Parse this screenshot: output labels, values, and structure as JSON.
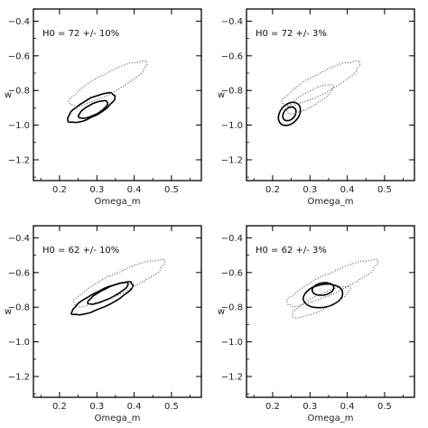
{
  "chart_data": [
    {
      "type": "contour",
      "label": "H0 = 72 +/- 10%",
      "xlabel": "Omega_m",
      "ylabel": "w",
      "xlim": [
        0.13,
        0.58
      ],
      "ylim": [
        -1.32,
        -0.33
      ],
      "xticks": [
        0.2,
        0.3,
        0.4,
        0.5
      ],
      "yticks": [
        -1.2,
        -1.0,
        -0.8,
        -0.6,
        -0.4
      ],
      "contours": [
        {
          "style": "solid",
          "center": [
            0.285,
            -0.9
          ],
          "semi_major": 0.2,
          "semi_minor": 0.072,
          "angle": 56,
          "wobble": 0.02
        },
        {
          "style": "solid",
          "center": [
            0.29,
            -0.91
          ],
          "semi_major": 0.12,
          "semi_minor": 0.045,
          "angle": 55,
          "wobble": 0.015
        },
        {
          "style": "dotted",
          "center": [
            0.33,
            -0.76
          ],
          "semi_major": 0.32,
          "semi_minor": 0.085,
          "angle": 52,
          "wobble": 0.03
        }
      ]
    },
    {
      "type": "contour",
      "label": "H0 = 72 +/- 3%",
      "xlabel": "Omega_m",
      "ylabel": "w",
      "xlim": [
        0.13,
        0.58
      ],
      "ylim": [
        -1.32,
        -0.33
      ],
      "xticks": [
        0.2,
        0.3,
        0.4,
        0.5
      ],
      "yticks": [
        -1.2,
        -1.0,
        -0.8,
        -0.6,
        -0.4
      ],
      "contours": [
        {
          "style": "solid",
          "center": [
            0.245,
            -0.935
          ],
          "semi_major": 0.135,
          "semi_minor": 0.055,
          "angle": 80,
          "wobble": 0.005
        },
        {
          "style": "solid",
          "center": [
            0.245,
            -0.935
          ],
          "semi_major": 0.08,
          "semi_minor": 0.033,
          "angle": 80,
          "wobble": 0.005
        },
        {
          "style": "dotted",
          "center": [
            0.33,
            -0.76
          ],
          "semi_major": 0.32,
          "semi_minor": 0.085,
          "angle": 52,
          "wobble": 0.03
        },
        {
          "style": "dotted",
          "center": [
            0.3,
            -0.85
          ],
          "semi_major": 0.2,
          "semi_minor": 0.06,
          "angle": 55,
          "wobble": 0.02
        }
      ]
    },
    {
      "type": "contour",
      "label": "H0 = 62 +/- 10%",
      "xlabel": "Omega_m",
      "ylabel": "w",
      "xlim": [
        0.13,
        0.58
      ],
      "ylim": [
        -1.32,
        -0.33
      ],
      "xticks": [
        0.2,
        0.3,
        0.4,
        0.5
      ],
      "yticks": [
        -1.2,
        -1.0,
        -0.8,
        -0.6,
        -0.4
      ],
      "contours": [
        {
          "style": "solid",
          "center": [
            0.315,
            -0.75
          ],
          "semi_major": 0.24,
          "semi_minor": 0.072,
          "angle": 50,
          "wobble": 0.02
        },
        {
          "style": "solid",
          "center": [
            0.33,
            -0.72
          ],
          "semi_major": 0.16,
          "semi_minor": 0.045,
          "angle": 50,
          "wobble": 0.015
        },
        {
          "style": "dotted",
          "center": [
            0.36,
            -0.66
          ],
          "semi_major": 0.35,
          "semi_minor": 0.09,
          "angle": 48,
          "wobble": 0.03
        }
      ]
    },
    {
      "type": "contour",
      "label": "H0 = 62 +/- 3%",
      "xlabel": "Omega_m",
      "ylabel": "w",
      "xlim": [
        0.13,
        0.58
      ],
      "ylim": [
        -1.32,
        -0.33
      ],
      "xticks": [
        0.2,
        0.3,
        0.4,
        0.5
      ],
      "yticks": [
        -1.2,
        -1.0,
        -0.8,
        -0.6,
        -0.4
      ],
      "contours": [
        {
          "style": "solid",
          "center": [
            0.335,
            -0.735
          ],
          "semi_major": 0.14,
          "semi_minor": 0.1,
          "angle": 70,
          "wobble": 0.005
        },
        {
          "style": "solid",
          "center": [
            0.335,
            -0.695
          ],
          "semi_major": 0.075,
          "semi_minor": 0.055,
          "angle": 70,
          "wobble": 0.005
        },
        {
          "style": "dotted",
          "center": [
            0.36,
            -0.66
          ],
          "semi_major": 0.35,
          "semi_minor": 0.09,
          "angle": 48,
          "wobble": 0.03
        },
        {
          "style": "dotted",
          "center": [
            0.33,
            -0.77
          ],
          "semi_major": 0.23,
          "semi_minor": 0.065,
          "angle": 50,
          "wobble": 0.02
        }
      ]
    }
  ]
}
